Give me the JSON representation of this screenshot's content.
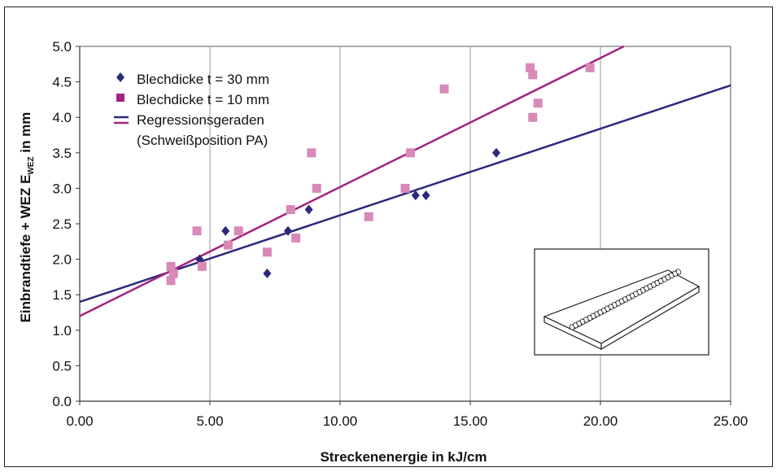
{
  "chart_data": {
    "type": "scatter",
    "xlabel": "Streckenenergie in kJ/cm",
    "ylabel_main": "Einbrandtiefe + WEZ E",
    "ylabel_sub": "WEZ",
    "ylabel_unit": " in mm",
    "xlim": [
      0,
      25
    ],
    "ylim": [
      0,
      5
    ],
    "x_ticks": [
      "0.00",
      "5.00",
      "10.00",
      "15.00",
      "20.00",
      "25.00"
    ],
    "y_ticks": [
      "0.0",
      "0.5",
      "1.0",
      "1.5",
      "2.0",
      "2.5",
      "3.0",
      "3.5",
      "4.0",
      "4.5",
      "5.0"
    ],
    "grid": "vertical",
    "legend_placement": "top-left",
    "legend": {
      "entries": [
        "Blechdicke t = 30 mm",
        "Blechdicke t = 10 mm",
        "Regressionsgeraden",
        "(Schweißposition PA)"
      ]
    },
    "colors": {
      "series_30": "#2b2a7a",
      "series_10": "#d889b8",
      "regression_30": "#2b2a7a",
      "regression_10": "#a3237f"
    },
    "series": [
      {
        "name": "Blechdicke t = 30 mm",
        "marker": "diamond",
        "points": [
          [
            4.6,
            2.0
          ],
          [
            5.6,
            2.4
          ],
          [
            7.2,
            1.8
          ],
          [
            8.0,
            2.4
          ],
          [
            8.8,
            2.7
          ],
          [
            12.9,
            2.9
          ],
          [
            13.3,
            2.9
          ],
          [
            16.0,
            3.5
          ]
        ]
      },
      {
        "name": "Blechdicke t = 10 mm",
        "marker": "square",
        "points": [
          [
            3.5,
            1.9
          ],
          [
            3.5,
            1.7
          ],
          [
            3.6,
            1.8
          ],
          [
            4.5,
            2.4
          ],
          [
            4.7,
            1.9
          ],
          [
            5.7,
            2.2
          ],
          [
            6.1,
            2.4
          ],
          [
            7.2,
            2.1
          ],
          [
            8.1,
            2.7
          ],
          [
            8.3,
            2.3
          ],
          [
            8.9,
            3.5
          ],
          [
            9.1,
            3.0
          ],
          [
            11.1,
            2.6
          ],
          [
            12.5,
            3.0
          ],
          [
            12.7,
            3.5
          ],
          [
            14.0,
            4.4
          ],
          [
            17.3,
            4.7
          ],
          [
            17.4,
            4.6
          ],
          [
            17.4,
            4.0
          ],
          [
            17.6,
            4.2
          ],
          [
            19.6,
            4.7
          ]
        ]
      }
    ],
    "regression_lines": [
      {
        "series": "Blechdicke t = 30 mm",
        "from": [
          0,
          1.4
        ],
        "to": [
          25,
          4.45
        ]
      },
      {
        "series": "Blechdicke t = 10 mm",
        "from": [
          0,
          1.2
        ],
        "to": [
          20.9,
          5.0
        ]
      }
    ]
  }
}
